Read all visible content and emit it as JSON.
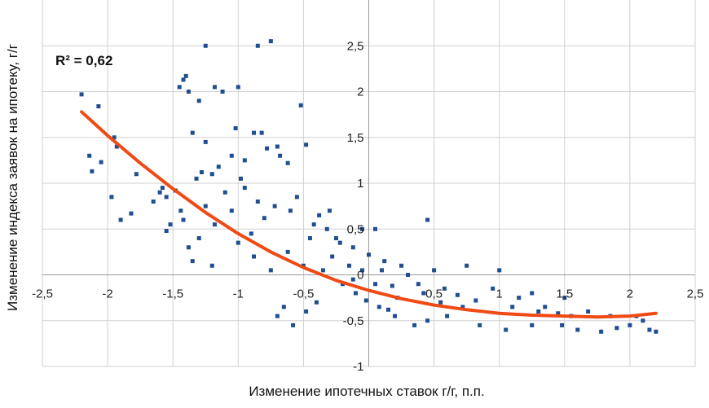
{
  "chart_data": {
    "type": "scatter",
    "xlabel": "Изменение ипотечных ставок г/г, п.п.",
    "ylabel": "Изменение индекса заявок на ипотеку, г/г",
    "annotation": "R² = 0,62",
    "xlim": [
      -2.5,
      2.5
    ],
    "ylim": [
      -1,
      3
    ],
    "x_ticks": [
      -2.5,
      -2,
      -1.5,
      -1,
      -0.5,
      0,
      0.5,
      1,
      1.5,
      2,
      2.5
    ],
    "x_tick_labels": [
      "-2,5",
      "-2",
      "-1,5",
      "-1",
      "-0,5",
      "0",
      "0,5",
      "1",
      "1,5",
      "2",
      "2,5"
    ],
    "y_ticks": [
      -1,
      -0.5,
      0,
      0.5,
      1,
      1.5,
      2,
      2.5
    ],
    "y_tick_labels": [
      "-1",
      "-0,5",
      "0",
      "0,5",
      "1",
      "1,5",
      "2",
      "2,5"
    ],
    "grid": true,
    "legend": "none",
    "colors": {
      "points": "#1f4e91",
      "trend": "#f04a14",
      "grid": "#d0d0d0",
      "axis": "#999999"
    },
    "points": [
      [
        -2.2,
        1.97
      ],
      [
        -2.07,
        1.84
      ],
      [
        -2.14,
        1.3
      ],
      [
        -2.05,
        1.23
      ],
      [
        -2.12,
        1.13
      ],
      [
        -1.95,
        1.5
      ],
      [
        -1.93,
        1.4
      ],
      [
        -1.78,
        1.1
      ],
      [
        -1.82,
        0.67
      ],
      [
        -1.9,
        0.6
      ],
      [
        -1.97,
        0.85
      ],
      [
        -1.6,
        0.9
      ],
      [
        -1.55,
        0.85
      ],
      [
        -1.42,
        2.13
      ],
      [
        -1.4,
        2.17
      ],
      [
        -1.45,
        2.05
      ],
      [
        -1.38,
        2.0
      ],
      [
        -1.3,
        1.9
      ],
      [
        -1.35,
        1.55
      ],
      [
        -1.25,
        1.45
      ],
      [
        -1.18,
        2.05
      ],
      [
        -1.12,
        2.0
      ],
      [
        -1.02,
        1.6
      ],
      [
        -0.88,
        1.55
      ],
      [
        -0.82,
        1.55
      ],
      [
        -0.78,
        1.38
      ],
      [
        -0.95,
        1.25
      ],
      [
        -0.7,
        1.4
      ],
      [
        -0.68,
        1.3
      ],
      [
        -0.62,
        1.22
      ],
      [
        -0.52,
        1.85
      ],
      [
        -0.48,
        1.42
      ],
      [
        -1.0,
        2.05
      ],
      [
        -1.25,
        2.5
      ],
      [
        -0.85,
        2.5
      ],
      [
        -0.75,
        2.55
      ],
      [
        -1.05,
        1.3
      ],
      [
        -1.2,
        1.1
      ],
      [
        -1.52,
        0.55
      ],
      [
        -1.44,
        0.7
      ],
      [
        -1.35,
        0.15
      ],
      [
        -1.38,
        0.3
      ],
      [
        -1.2,
        0.1
      ],
      [
        -0.38,
        0.65
      ],
      [
        -0.3,
        0.7
      ],
      [
        -0.25,
        0.4
      ],
      [
        -0.05,
        0.5
      ],
      [
        0.05,
        0.5
      ],
      [
        0.45,
        0.6
      ],
      [
        -0.7,
        -0.45
      ],
      [
        -0.65,
        -0.35
      ],
      [
        -0.58,
        -0.55
      ],
      [
        -0.48,
        -0.4
      ],
      [
        -0.4,
        -0.3
      ],
      [
        0.15,
        -0.38
      ],
      [
        0.2,
        -0.45
      ],
      [
        0.35,
        -0.55
      ],
      [
        0.45,
        -0.5
      ],
      [
        0.6,
        -0.45
      ],
      [
        0.85,
        -0.55
      ],
      [
        1.05,
        -0.6
      ],
      [
        1.25,
        -0.55
      ],
      [
        1.48,
        -0.55
      ],
      [
        1.6,
        -0.6
      ],
      [
        1.78,
        -0.62
      ],
      [
        1.9,
        -0.58
      ],
      [
        2.0,
        -0.55
      ],
      [
        2.15,
        -0.6
      ],
      [
        2.2,
        -0.62
      ],
      [
        2.05,
        -0.45
      ],
      [
        1.55,
        -0.45
      ],
      [
        1.35,
        -0.35
      ],
      [
        1.15,
        -0.25
      ],
      [
        0.95,
        -0.15
      ],
      [
        1.25,
        -0.2
      ],
      [
        1.5,
        -0.25
      ],
      [
        0.75,
        0.1
      ],
      [
        0.5,
        0.05
      ],
      [
        0.25,
        0.1
      ],
      [
        1.0,
        0.05
      ],
      [
        -1.65,
        0.8
      ],
      [
        -1.58,
        0.95
      ],
      [
        -1.48,
        0.92
      ],
      [
        -1.32,
        1.05
      ],
      [
        -1.28,
        1.12
      ],
      [
        -1.15,
        1.18
      ],
      [
        -0.98,
        1.05
      ],
      [
        -1.1,
        0.9
      ],
      [
        -1.55,
        0.48
      ],
      [
        -1.18,
        0.55
      ],
      [
        -1.05,
        0.7
      ],
      [
        -0.95,
        0.95
      ],
      [
        -0.85,
        0.8
      ],
      [
        -0.72,
        0.75
      ],
      [
        -0.6,
        0.7
      ],
      [
        -0.55,
        0.85
      ],
      [
        -0.42,
        0.55
      ],
      [
        -0.32,
        0.5
      ],
      [
        -0.22,
        0.35
      ],
      [
        -0.12,
        0.3
      ],
      [
        0.0,
        0.22
      ],
      [
        0.12,
        0.15
      ],
      [
        0.3,
        0.0
      ],
      [
        0.38,
        -0.1
      ],
      [
        0.58,
        -0.15
      ],
      [
        0.68,
        -0.22
      ],
      [
        0.82,
        -0.28
      ],
      [
        1.1,
        -0.35
      ],
      [
        1.3,
        -0.4
      ],
      [
        1.45,
        -0.42
      ],
      [
        1.68,
        -0.4
      ],
      [
        1.85,
        -0.45
      ],
      [
        2.1,
        -0.5
      ],
      [
        -0.88,
        0.2
      ],
      [
        -0.75,
        0.05
      ],
      [
        -0.62,
        0.25
      ],
      [
        -0.5,
        0.1
      ],
      [
        -0.35,
        0.05
      ],
      [
        -0.2,
        -0.1
      ],
      [
        -0.1,
        -0.2
      ],
      [
        -0.02,
        -0.28
      ],
      [
        0.08,
        -0.35
      ],
      [
        0.22,
        -0.25
      ],
      [
        -0.9,
        0.45
      ],
      [
        -1.0,
        0.35
      ],
      [
        -0.8,
        0.62
      ],
      [
        -1.3,
        0.4
      ],
      [
        -1.42,
        0.6
      ],
      [
        -1.25,
        0.75
      ],
      [
        0.55,
        -0.3
      ],
      [
        -0.45,
        0.4
      ],
      [
        -0.28,
        0.2
      ],
      [
        0.1,
        0.05
      ],
      [
        -0.15,
        0.1
      ],
      [
        0.05,
        -0.1
      ],
      [
        -0.05,
        0.05
      ],
      [
        -0.12,
        -0.05
      ],
      [
        0.18,
        -0.12
      ],
      [
        0.42,
        -0.2
      ],
      [
        0.72,
        -0.35
      ]
    ],
    "trend": [
      [
        -2.2,
        1.78
      ],
      [
        -2.0,
        1.52
      ],
      [
        -1.75,
        1.22
      ],
      [
        -1.5,
        0.94
      ],
      [
        -1.25,
        0.68
      ],
      [
        -1.0,
        0.45
      ],
      [
        -0.75,
        0.25
      ],
      [
        -0.5,
        0.08
      ],
      [
        -0.25,
        -0.06
      ],
      [
        0.0,
        -0.17
      ],
      [
        0.25,
        -0.26
      ],
      [
        0.5,
        -0.33
      ],
      [
        0.75,
        -0.38
      ],
      [
        1.0,
        -0.42
      ],
      [
        1.25,
        -0.44
      ],
      [
        1.5,
        -0.45
      ],
      [
        1.75,
        -0.46
      ],
      [
        2.0,
        -0.45
      ],
      [
        2.2,
        -0.42
      ]
    ]
  }
}
